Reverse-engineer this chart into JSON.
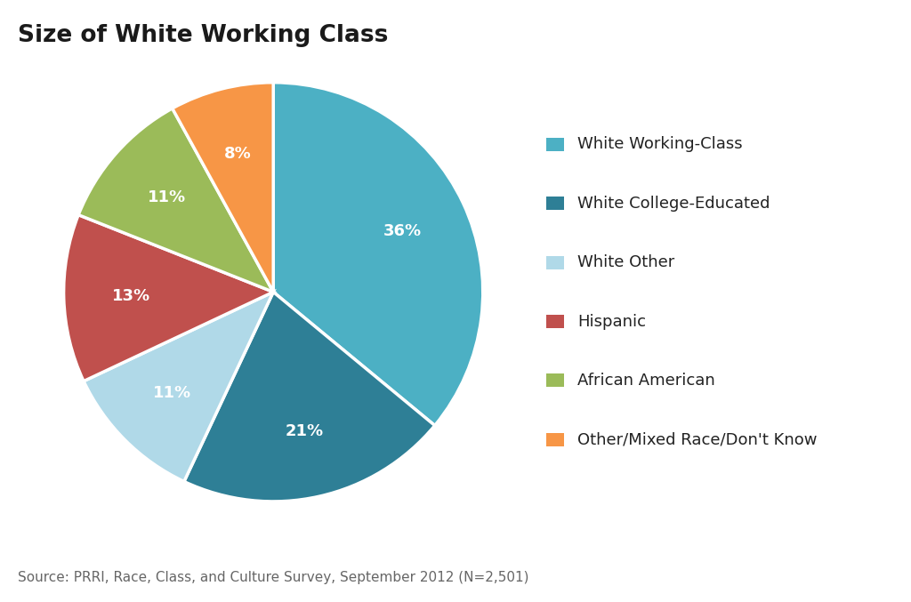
{
  "title": "Size of White Working Class",
  "source_text": "Source: PRRI, Race, Class, and Culture Survey, September 2012 (N=2,501)",
  "labels": [
    "White Working-Class",
    "White College-Educated",
    "White Other",
    "Hispanic",
    "African American",
    "Other/Mixed Race/Don't Know"
  ],
  "values": [
    36,
    21,
    11,
    13,
    11,
    8
  ],
  "colors": [
    "#4cb0c4",
    "#2e7f96",
    "#b0d9e8",
    "#c0504d",
    "#9bbb59",
    "#f79646"
  ],
  "background_color": "#d9eef5",
  "figure_bg": "#ffffff",
  "title_fontsize": 19,
  "label_fontsize": 13,
  "legend_fontsize": 13,
  "source_fontsize": 11,
  "startangle": 90,
  "pctdistance": 0.68
}
